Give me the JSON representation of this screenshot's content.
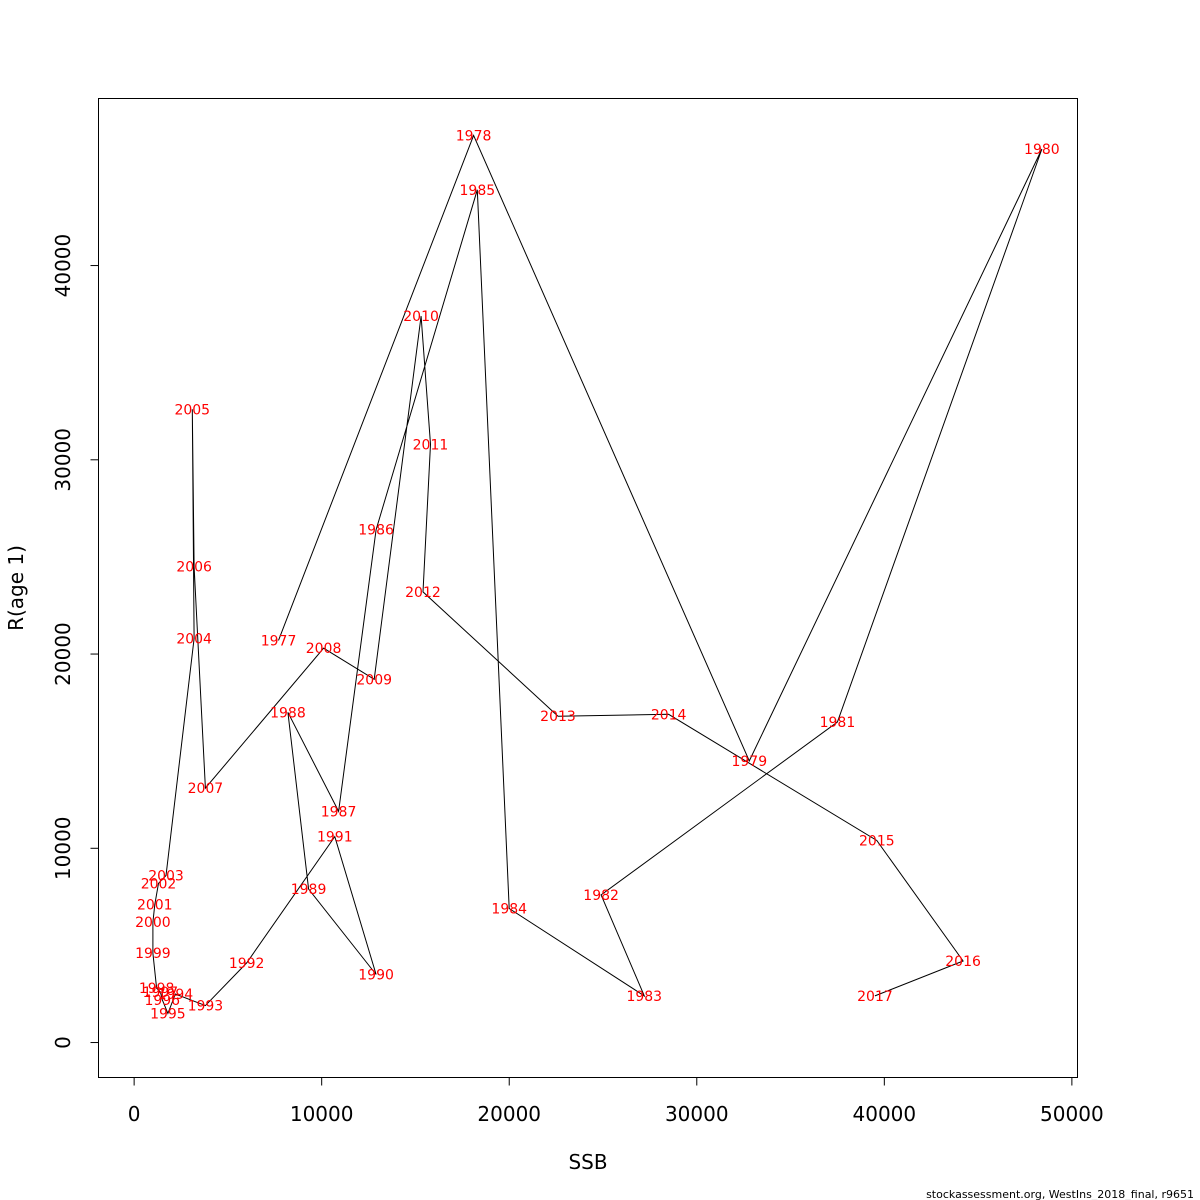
{
  "chart_data": {
    "type": "line",
    "xlabel": "SSB",
    "ylabel": "R(age 1)",
    "xlim": [
      -1900,
      50300
    ],
    "ylim": [
      -1800,
      48600
    ],
    "grid": false,
    "x_ticks": [
      0,
      10000,
      20000,
      30000,
      40000,
      50000
    ],
    "y_ticks": [
      0,
      10000,
      20000,
      30000,
      40000
    ],
    "label_color": "#ff0000",
    "line_color": "#000000",
    "points": [
      {
        "label": "1977",
        "x": 7700,
        "y": 20700
      },
      {
        "label": "1978",
        "x": 18100,
        "y": 46700
      },
      {
        "label": "1979",
        "x": 32800,
        "y": 14500
      },
      {
        "label": "1980",
        "x": 48400,
        "y": 46000
      },
      {
        "label": "1981",
        "x": 37500,
        "y": 16500
      },
      {
        "label": "1982",
        "x": 24900,
        "y": 7600
      },
      {
        "label": "1983",
        "x": 27200,
        "y": 2400
      },
      {
        "label": "1984",
        "x": 20000,
        "y": 6900
      },
      {
        "label": "1985",
        "x": 18300,
        "y": 43900
      },
      {
        "label": "1986",
        "x": 12900,
        "y": 26400
      },
      {
        "label": "1987",
        "x": 10900,
        "y": 11900
      },
      {
        "label": "1988",
        "x": 8200,
        "y": 17000
      },
      {
        "label": "1989",
        "x": 9300,
        "y": 7900
      },
      {
        "label": "1990",
        "x": 12900,
        "y": 3500
      },
      {
        "label": "1991",
        "x": 10700,
        "y": 10600
      },
      {
        "label": "1992",
        "x": 6000,
        "y": 4100
      },
      {
        "label": "1993",
        "x": 3800,
        "y": 1900
      },
      {
        "label": "1994",
        "x": 2200,
        "y": 2500
      },
      {
        "label": "1995",
        "x": 1800,
        "y": 1500
      },
      {
        "label": "1996",
        "x": 1500,
        "y": 2200
      },
      {
        "label": "1997",
        "x": 1400,
        "y": 2600
      },
      {
        "label": "1998",
        "x": 1200,
        "y": 2800
      },
      {
        "label": "1999",
        "x": 1000,
        "y": 4600
      },
      {
        "label": "2000",
        "x": 1000,
        "y": 6200
      },
      {
        "label": "2001",
        "x": 1100,
        "y": 7100
      },
      {
        "label": "2002",
        "x": 1300,
        "y": 8200
      },
      {
        "label": "2003",
        "x": 1700,
        "y": 8600
      },
      {
        "label": "2004",
        "x": 3200,
        "y": 20800
      },
      {
        "label": "2005",
        "x": 3100,
        "y": 32600
      },
      {
        "label": "2006",
        "x": 3200,
        "y": 24500
      },
      {
        "label": "2007",
        "x": 3800,
        "y": 13100
      },
      {
        "label": "2008",
        "x": 10100,
        "y": 20300
      },
      {
        "label": "2009",
        "x": 12800,
        "y": 18700
      },
      {
        "label": "2010",
        "x": 15300,
        "y": 37400
      },
      {
        "label": "2011",
        "x": 15800,
        "y": 30800
      },
      {
        "label": "2012",
        "x": 15400,
        "y": 23200
      },
      {
        "label": "2013",
        "x": 22600,
        "y": 16800
      },
      {
        "label": "2014",
        "x": 28500,
        "y": 16900
      },
      {
        "label": "2015",
        "x": 39600,
        "y": 10400
      },
      {
        "label": "2016",
        "x": 44200,
        "y": 4200
      },
      {
        "label": "2017",
        "x": 39500,
        "y": 2400
      }
    ]
  },
  "footer": "stockassessment.org, WestIns_2018_final, r9651"
}
